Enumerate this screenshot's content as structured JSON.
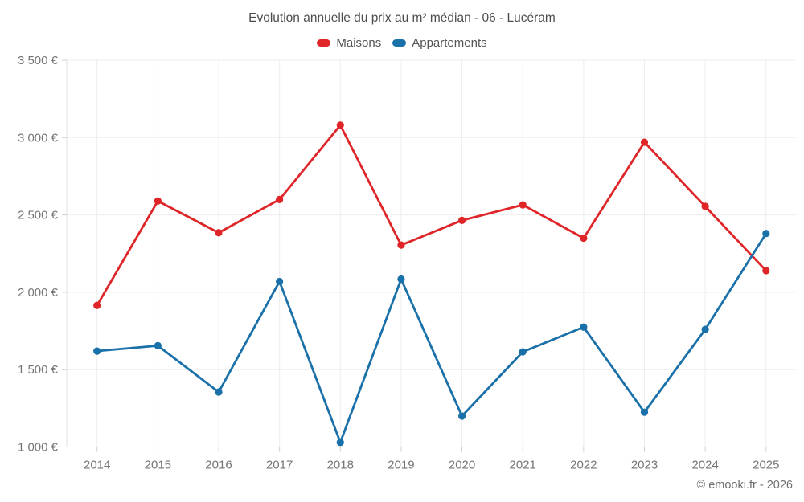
{
  "chart_data": {
    "type": "line",
    "title": "Evolution annuelle du prix au m² médian - 06 - Lucéram",
    "x": [
      2014,
      2015,
      2016,
      2017,
      2018,
      2019,
      2020,
      2021,
      2022,
      2023,
      2024,
      2025
    ],
    "series": [
      {
        "name": "Maisons",
        "color": "#e02529",
        "values": [
          1915,
          2590,
          2385,
          2600,
          3080,
          2305,
          2465,
          2565,
          2350,
          2970,
          2555,
          2140
        ]
      },
      {
        "name": "Appartements",
        "color": "#1a70a8",
        "values": [
          1620,
          1655,
          1355,
          2070,
          1030,
          2085,
          1200,
          1615,
          1775,
          1225,
          1760,
          2380
        ]
      }
    ],
    "xlabel": "",
    "ylabel": "",
    "ylim": [
      1000,
      3500
    ],
    "yticks": {
      "values": [
        1000,
        1500,
        2000,
        2500,
        3000,
        3500
      ],
      "labels": [
        "1 000 €",
        "1 500 €",
        "2 000 €",
        "2 500 €",
        "3 000 €",
        "3 500 €"
      ]
    },
    "grid": true,
    "legend_position": "top"
  },
  "footer": {
    "attribution": "© emooki.fr - 2026"
  }
}
